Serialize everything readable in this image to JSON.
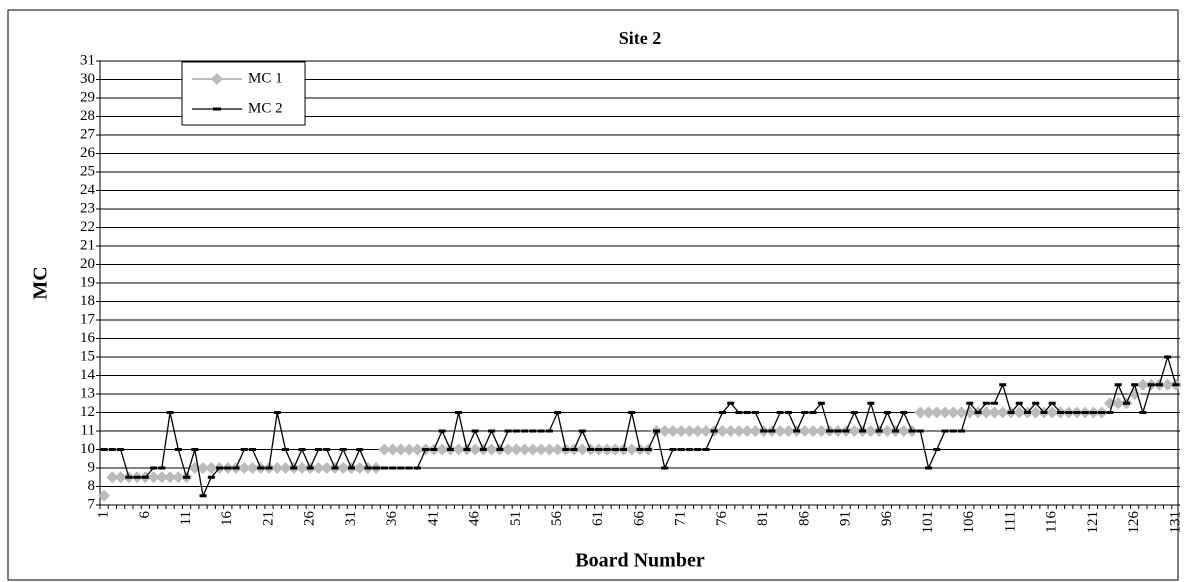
{
  "chart_data": {
    "type": "line",
    "title": "Site 2",
    "x_label": "Board Number",
    "y_label": "MC",
    "categories": [
      1,
      null,
      null,
      null,
      null,
      6,
      null,
      null,
      null,
      null,
      11,
      null,
      null,
      null,
      null,
      16,
      null,
      null,
      null,
      null,
      21,
      null,
      null,
      null,
      null,
      26,
      null,
      null,
      null,
      null,
      31,
      null,
      null,
      null,
      null,
      36,
      null,
      null,
      null,
      null,
      41,
      null,
      null,
      null,
      null,
      46,
      null,
      null,
      null,
      null,
      51,
      null,
      null,
      null,
      null,
      56,
      null,
      null,
      null,
      null,
      61,
      null,
      null,
      null,
      null,
      66,
      null,
      null,
      null,
      null,
      71,
      null,
      null,
      null,
      null,
      76,
      null,
      null,
      null,
      null,
      81,
      null,
      null,
      null,
      null,
      86,
      null,
      null,
      null,
      null,
      91,
      null,
      null,
      null,
      null,
      96,
      null,
      null,
      null,
      null,
      101,
      null,
      null,
      null,
      null,
      106,
      null,
      null,
      null,
      null,
      111,
      null,
      null,
      null,
      null,
      116,
      null,
      null,
      null,
      null,
      121,
      null,
      null,
      null,
      null,
      126,
      null,
      null,
      null,
      null,
      131
    ],
    "series": [
      {
        "name": "MC 1",
        "color": "#bbbbbb",
        "values": [
          7.5,
          8.5,
          8.5,
          8.5,
          8.5,
          8.5,
          8.5,
          8.5,
          8.5,
          8.5,
          8.5,
          9,
          9,
          9,
          9,
          9,
          9,
          9,
          9,
          9,
          9,
          9,
          9,
          9,
          9,
          9,
          9,
          9,
          9,
          9,
          9,
          9,
          9,
          9,
          10,
          10,
          10,
          10,
          10,
          10,
          10,
          10,
          10,
          10,
          10,
          10,
          10,
          10,
          10,
          10,
          10,
          10,
          10,
          10,
          10,
          10,
          10,
          10,
          10,
          10,
          10,
          10,
          10,
          10,
          10,
          10,
          10,
          11,
          11,
          11,
          11,
          11,
          11,
          11,
          11,
          11,
          11,
          11,
          11,
          11,
          11,
          11,
          11,
          11,
          11,
          11,
          11,
          11,
          11,
          11,
          11,
          11,
          11,
          11,
          11,
          11,
          11,
          11,
          11,
          12,
          12,
          12,
          12,
          12,
          12,
          12,
          12,
          12,
          12,
          12,
          12,
          12,
          12,
          12,
          12,
          12,
          12,
          12,
          12,
          12,
          12,
          12,
          12.5,
          12.5,
          12.5,
          13,
          13.5,
          13.5,
          13.5,
          13.5,
          13.5
        ]
      },
      {
        "name": "MC 2",
        "color": "#000000",
        "values": [
          10,
          10,
          10,
          8.5,
          8.5,
          8.5,
          9,
          9,
          12,
          10,
          8.5,
          10,
          7.5,
          8.5,
          9,
          9,
          9,
          10,
          10,
          9,
          9,
          12,
          10,
          9,
          10,
          9,
          10,
          10,
          9,
          10,
          9,
          10,
          9,
          9,
          9,
          9,
          9,
          9,
          9,
          10,
          10,
          11,
          10,
          12,
          10,
          11,
          10,
          11,
          10,
          11,
          11,
          11,
          11,
          11,
          11,
          12,
          10,
          10,
          11,
          10,
          10,
          10,
          10,
          10,
          12,
          10,
          10,
          11,
          9,
          10,
          10,
          10,
          10,
          10,
          11,
          12,
          12.5,
          12,
          12,
          12,
          11,
          11,
          12,
          12,
          11,
          12,
          12,
          12.5,
          11,
          11,
          11,
          12,
          11,
          12.5,
          11,
          12,
          11,
          12,
          11,
          11,
          9,
          10,
          11,
          11,
          11,
          12.5,
          12,
          12.5,
          12.5,
          13.5,
          12,
          12.5,
          12,
          12.5,
          12,
          12.5,
          12,
          12,
          12,
          12,
          12,
          12,
          12,
          13.5,
          12.5,
          13.5,
          12,
          13.5,
          13.5,
          15,
          13.5
        ]
      }
    ],
    "ylim": [
      7,
      31
    ],
    "yticks": [
      7,
      8,
      9,
      10,
      11,
      12,
      13,
      14,
      15,
      16,
      17,
      18,
      19,
      20,
      21,
      22,
      23,
      24,
      25,
      26,
      27,
      28,
      29,
      30,
      31
    ],
    "grid": true,
    "legend": "top-left"
  }
}
